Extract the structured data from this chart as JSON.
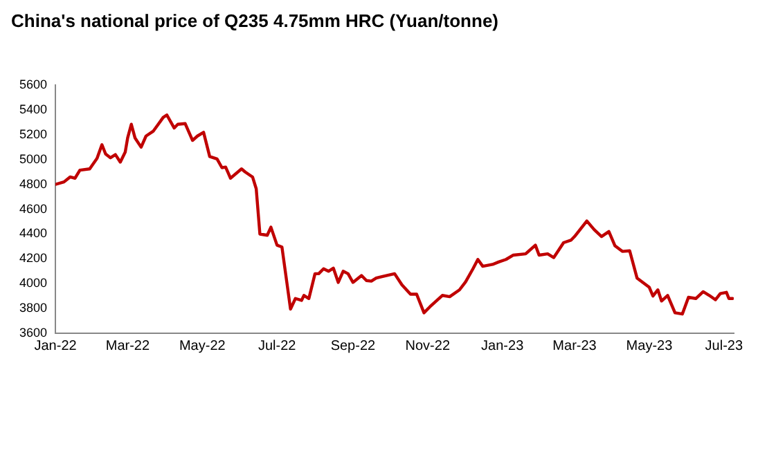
{
  "chart_data": {
    "type": "line",
    "title": "China's national price of Q235 4.75mm HRC (Yuan/tonne)",
    "x": [
      "2022-01-01",
      "2022-01-08",
      "2022-01-13",
      "2022-01-17",
      "2022-01-21",
      "2022-01-29",
      "2022-02-04",
      "2022-02-08",
      "2022-02-11",
      "2022-02-15",
      "2022-02-19",
      "2022-02-23",
      "2022-02-27",
      "2022-03-01",
      "2022-03-04",
      "2022-03-07",
      "2022-03-12",
      "2022-03-16",
      "2022-03-22",
      "2022-03-26",
      "2022-03-30",
      "2022-04-02",
      "2022-04-08",
      "2022-04-11",
      "2022-04-17",
      "2022-04-23",
      "2022-04-27",
      "2022-05-02",
      "2022-05-07",
      "2022-05-13",
      "2022-05-17",
      "2022-05-20",
      "2022-05-24",
      "2022-06-02",
      "2022-06-05",
      "2022-06-11",
      "2022-06-14",
      "2022-06-17",
      "2022-06-23",
      "2022-06-26",
      "2022-07-01",
      "2022-07-05",
      "2022-07-09",
      "2022-07-12",
      "2022-07-16",
      "2022-07-21",
      "2022-07-23",
      "2022-07-27",
      "2022-08-01",
      "2022-08-04",
      "2022-08-08",
      "2022-08-12",
      "2022-08-16",
      "2022-08-20",
      "2022-08-24",
      "2022-08-28",
      "2022-09-01",
      "2022-09-08",
      "2022-09-12",
      "2022-09-16",
      "2022-09-20",
      "2022-09-24",
      "2022-10-05",
      "2022-10-11",
      "2022-10-18",
      "2022-10-23",
      "2022-10-29",
      "2022-11-03",
      "2022-11-13",
      "2022-11-19",
      "2022-11-27",
      "2022-12-02",
      "2022-12-08",
      "2022-12-12",
      "2022-12-16",
      "2022-12-24",
      "2022-12-29",
      "2023-01-04",
      "2023-01-10",
      "2023-01-20",
      "2023-01-28",
      "2023-01-31",
      "2023-02-07",
      "2023-02-12",
      "2023-02-20",
      "2023-02-26",
      "2023-03-01",
      "2023-03-11",
      "2023-03-17",
      "2023-03-23",
      "2023-03-29",
      "2023-04-03",
      "2023-04-09",
      "2023-04-15",
      "2023-04-21",
      "2023-05-01",
      "2023-05-04",
      "2023-05-08",
      "2023-05-11",
      "2023-05-16",
      "2023-05-22",
      "2023-05-28",
      "2023-06-02",
      "2023-06-08",
      "2023-06-14",
      "2023-06-19",
      "2023-06-24",
      "2023-06-28",
      "2023-07-03",
      "2023-07-05",
      "2023-07-08"
    ],
    "series": [
      {
        "color": "#c00000",
        "values": [
          4800,
          4820,
          4860,
          4850,
          4915,
          4925,
          5010,
          5120,
          5045,
          5015,
          5040,
          4980,
          5060,
          5175,
          5285,
          5175,
          5100,
          5190,
          5230,
          5285,
          5340,
          5360,
          5255,
          5285,
          5290,
          5155,
          5190,
          5220,
          5025,
          5005,
          4935,
          4940,
          4850,
          4925,
          4900,
          4860,
          4765,
          4400,
          4390,
          4455,
          4310,
          4295,
          4010,
          3795,
          3880,
          3865,
          3905,
          3880,
          4080,
          4080,
          4120,
          4100,
          4125,
          4010,
          4100,
          4080,
          4010,
          4065,
          4025,
          4020,
          4045,
          4055,
          4080,
          3990,
          3915,
          3915,
          3765,
          3815,
          3905,
          3895,
          3950,
          4015,
          4120,
          4195,
          4140,
          4155,
          4175,
          4195,
          4230,
          4240,
          4310,
          4230,
          4240,
          4210,
          4330,
          4350,
          4380,
          4505,
          4435,
          4380,
          4420,
          4305,
          4260,
          4265,
          4045,
          3970,
          3900,
          3950,
          3860,
          3905,
          3765,
          3755,
          3890,
          3880,
          3935,
          3905,
          3870,
          3920,
          3930,
          3880,
          3880
        ]
      }
    ],
    "xlim": [
      "2022-01-01",
      "2023-07-09"
    ],
    "xticks": [
      {
        "value": "2022-01-01",
        "label": "Jan-22"
      },
      {
        "value": "2022-03-01",
        "label": "Mar-22"
      },
      {
        "value": "2022-05-01",
        "label": "May-22"
      },
      {
        "value": "2022-07-01",
        "label": "Jul-22"
      },
      {
        "value": "2022-09-01",
        "label": "Sep-22"
      },
      {
        "value": "2022-11-01",
        "label": "Nov-22"
      },
      {
        "value": "2023-01-01",
        "label": "Jan-23"
      },
      {
        "value": "2023-03-01",
        "label": "Mar-23"
      },
      {
        "value": "2023-05-01",
        "label": "May-23"
      },
      {
        "value": "2023-07-01",
        "label": "Jul-23"
      }
    ],
    "ylim": [
      3600,
      5600
    ],
    "yticks": [
      3600,
      3800,
      4000,
      4200,
      4400,
      4600,
      4800,
      5000,
      5200,
      5400,
      5600
    ],
    "grid": false,
    "legend": false,
    "marker": "none",
    "line_style": "solid"
  }
}
